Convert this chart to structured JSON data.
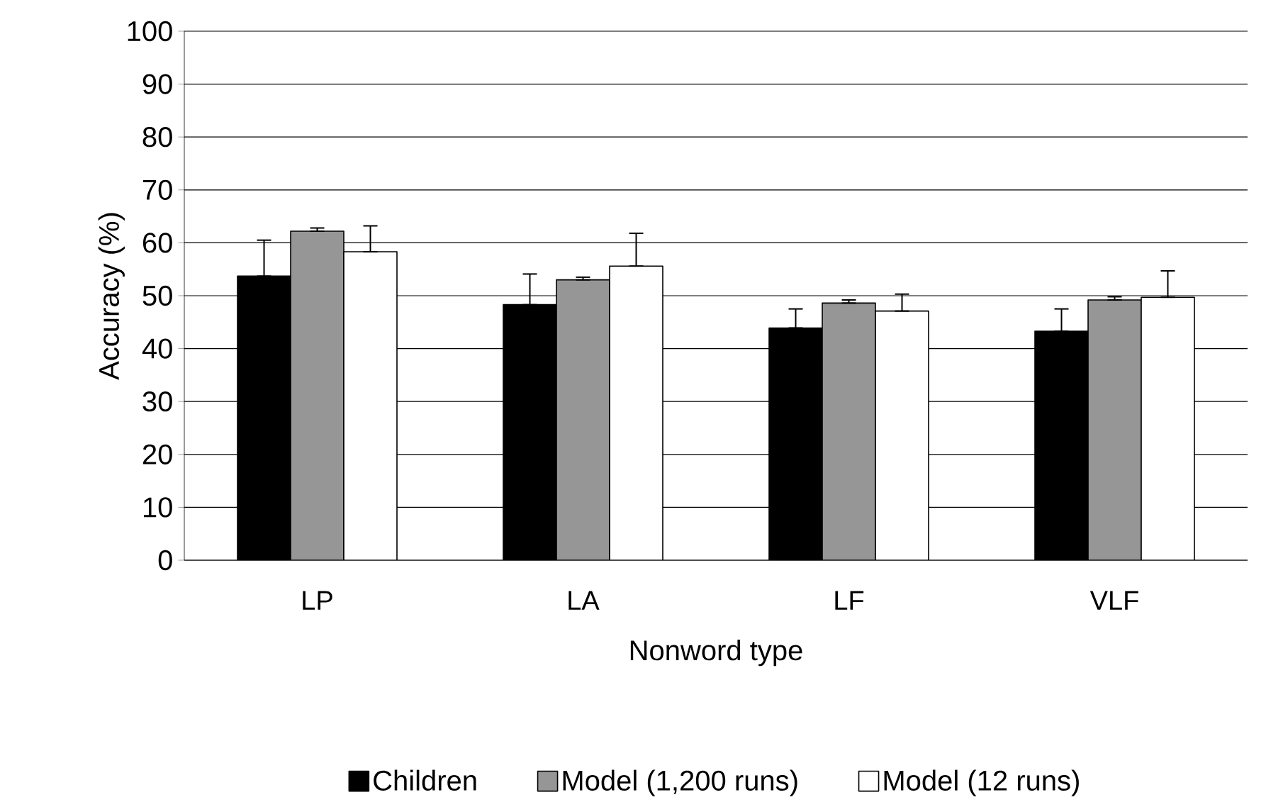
{
  "chart_data": {
    "type": "bar",
    "xlabel": "Nonword type",
    "ylabel": "Accuracy (%)",
    "categories": [
      "LP",
      "LA",
      "LF",
      "VLF"
    ],
    "series": [
      {
        "name": "Children",
        "color": "#000000",
        "values": [
          53.7,
          48.3,
          43.9,
          43.3
        ],
        "errors": [
          [
            53.7,
            60.5
          ],
          [
            48.3,
            54.1
          ],
          [
            43.9,
            47.5
          ],
          [
            43.3,
            47.5
          ]
        ]
      },
      {
        "name": "Model (1,200 runs)",
        "color": "#969696",
        "values": [
          62.2,
          53.0,
          48.6,
          49.2
        ],
        "errors": [
          [
            62.2,
            62.8
          ],
          [
            53.0,
            53.5
          ],
          [
            48.6,
            49.2
          ],
          [
            49.2,
            49.8
          ]
        ]
      },
      {
        "name": "Model (12 runs)",
        "color": "#ffffff",
        "values": [
          58.3,
          55.6,
          47.1,
          49.7
        ],
        "errors": [
          [
            58.3,
            63.2
          ],
          [
            55.6,
            61.8
          ],
          [
            47.1,
            50.3
          ],
          [
            49.7,
            54.7
          ]
        ]
      }
    ],
    "ylim": [
      0,
      100
    ],
    "yticks": [
      0,
      10,
      20,
      30,
      40,
      50,
      60,
      70,
      80,
      90,
      100
    ],
    "grid": "y",
    "legend": "bottom"
  }
}
